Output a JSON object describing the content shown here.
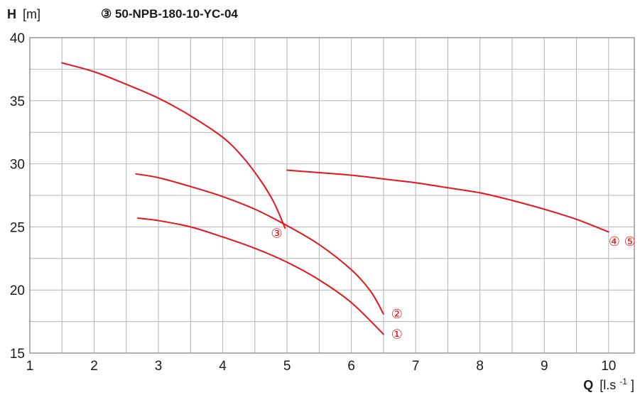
{
  "chart_data": {
    "type": "line",
    "title": "③ 50-NPB-180-10-YC-04",
    "ylabel": {
      "symbol": "H",
      "unit": "[m]"
    },
    "xlabel": {
      "symbol": "Q",
      "unit": "[l.s",
      "unit_sup": "-1",
      "unit_end": "]"
    },
    "xlim": [
      1,
      10.4
    ],
    "ylim": [
      15,
      40
    ],
    "x_ticks": [
      1,
      2,
      3,
      4,
      5,
      6,
      7,
      8,
      9,
      10
    ],
    "y_ticks": [
      15,
      20,
      25,
      30,
      35,
      40
    ],
    "x_grid_step": 0.5,
    "y_grid_step": 2.5,
    "grid": true,
    "curve_color": "#e8141c",
    "grid_color": "#b4b4b4",
    "series": [
      {
        "label": "①",
        "points": [
          [
            2.68,
            25.7
          ],
          [
            3.0,
            25.5
          ],
          [
            3.5,
            25.0
          ],
          [
            4.0,
            24.2
          ],
          [
            4.5,
            23.3
          ],
          [
            5.0,
            22.2
          ],
          [
            5.5,
            20.8
          ],
          [
            6.0,
            19.0
          ],
          [
            6.5,
            16.5
          ]
        ],
        "label_at": [
          6.62,
          16.5
        ]
      },
      {
        "label": "②",
        "points": [
          [
            2.65,
            29.2
          ],
          [
            3.0,
            28.9
          ],
          [
            3.5,
            28.2
          ],
          [
            4.0,
            27.4
          ],
          [
            4.5,
            26.4
          ],
          [
            5.0,
            25.1
          ],
          [
            5.5,
            23.6
          ],
          [
            6.0,
            21.6
          ],
          [
            6.3,
            19.9
          ],
          [
            6.5,
            18.1
          ]
        ],
        "label_at": [
          6.62,
          18.1
        ]
      },
      {
        "label": "③",
        "points": [
          [
            1.5,
            38.0
          ],
          [
            2.0,
            37.3
          ],
          [
            2.5,
            36.3
          ],
          [
            3.0,
            35.2
          ],
          [
            3.5,
            33.8
          ],
          [
            4.0,
            32.1
          ],
          [
            4.3,
            30.6
          ],
          [
            4.6,
            28.6
          ],
          [
            4.8,
            26.9
          ],
          [
            4.97,
            24.9
          ]
        ],
        "label_at": [
          4.75,
          24.5
        ]
      },
      {
        "label": "④ ⑤",
        "points": [
          [
            5.0,
            29.5
          ],
          [
            5.5,
            29.3
          ],
          [
            6.0,
            29.1
          ],
          [
            6.5,
            28.8
          ],
          [
            7.0,
            28.5
          ],
          [
            7.5,
            28.1
          ],
          [
            8.0,
            27.7
          ],
          [
            8.5,
            27.1
          ],
          [
            9.0,
            26.4
          ],
          [
            9.5,
            25.6
          ],
          [
            10.0,
            24.6
          ]
        ],
        "label_at": [
          10.0,
          23.85
        ]
      }
    ]
  }
}
